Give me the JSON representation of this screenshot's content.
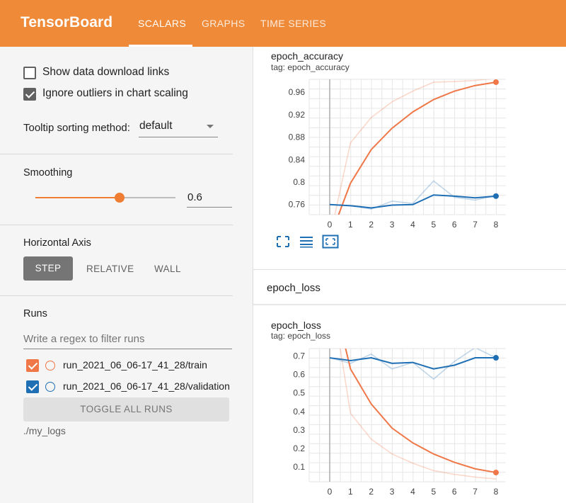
{
  "header": {
    "brand": "TensorBoard",
    "tabs": [
      {
        "label": "SCALARS",
        "active": true
      },
      {
        "label": "GRAPHS",
        "active": false
      },
      {
        "label": "TIME SERIES",
        "active": false
      }
    ],
    "accent": "#ef8a38"
  },
  "sidebar": {
    "options": {
      "show_download_links": {
        "label": "Show data download links",
        "checked": false
      },
      "ignore_outliers": {
        "label": "Ignore outliers in chart scaling",
        "checked": true
      }
    },
    "tooltip_sorting": {
      "label": "Tooltip sorting method:",
      "value": "default"
    },
    "smoothing": {
      "title": "Smoothing",
      "value": "0.6",
      "level": 0.6
    },
    "horizontal_axis": {
      "title": "Horizontal Axis",
      "options": [
        "STEP",
        "RELATIVE",
        "WALL"
      ],
      "selected": "STEP"
    },
    "runs": {
      "title": "Runs",
      "filter_placeholder": "Write a regex to filter runs",
      "items": [
        {
          "name": "run_2021_06_06-17_41_28/train",
          "color": "#ef7748",
          "checked": true
        },
        {
          "name": "run_2021_06_06-17_41_28/validation",
          "color": "#1f6fb5",
          "checked": true
        }
      ],
      "toggle_label": "TOGGLE ALL RUNS",
      "logdir": "./my_logs"
    }
  },
  "chart_data": [
    {
      "type": "line",
      "title": "epoch_accuracy",
      "tag": "tag: epoch_accuracy",
      "x": [
        0,
        1,
        2,
        3,
        4,
        5,
        6,
        7,
        8
      ],
      "xlim": [
        0,
        8
      ],
      "ylim": [
        0.742,
        0.983
      ],
      "yticks": [
        0.76,
        0.8,
        0.84,
        0.88,
        0.92,
        0.96
      ],
      "ytick_labels": [
        "0.76",
        "0.8",
        "0.84",
        "0.88",
        "0.92",
        "0.96"
      ],
      "grid": true,
      "series": [
        {
          "run": "train",
          "color": "#ef7748",
          "raw": [
            0.7,
            0.87,
            0.915,
            0.943,
            0.962,
            0.978,
            0.979,
            0.981,
            0.985
          ],
          "smoothed": [
            0.7,
            0.798,
            0.858,
            0.896,
            0.925,
            0.947,
            0.962,
            0.972,
            0.978
          ]
        },
        {
          "run": "validation",
          "color": "#1f6fb5",
          "raw": [
            0.76,
            0.758,
            0.752,
            0.766,
            0.762,
            0.802,
            0.773,
            0.768,
            0.776
          ],
          "smoothed": [
            0.76,
            0.758,
            0.754,
            0.759,
            0.76,
            0.777,
            0.775,
            0.772,
            0.775
          ]
        }
      ]
    },
    {
      "type": "line",
      "title": "epoch_loss",
      "tag": "tag: epoch_loss",
      "x": [
        0,
        1,
        2,
        3,
        4,
        5,
        6,
        7,
        8
      ],
      "xlim": [
        0,
        8
      ],
      "ylim": [
        0.02,
        0.74
      ],
      "yticks": [
        0.1,
        0.2,
        0.3,
        0.4,
        0.5,
        0.6,
        0.7
      ],
      "ytick_labels": [
        "0.1",
        "0.2",
        "0.3",
        "0.4",
        "0.5",
        "0.6",
        "0.7"
      ],
      "grid": true,
      "series": [
        {
          "run": "train",
          "color": "#ef7748",
          "raw": [
            1.1,
            0.39,
            0.25,
            0.17,
            0.12,
            0.08,
            0.06,
            0.045,
            0.035
          ],
          "smoothed": [
            1.1,
            0.63,
            0.44,
            0.31,
            0.23,
            0.17,
            0.125,
            0.09,
            0.07
          ]
        },
        {
          "run": "validation",
          "color": "#1f6fb5",
          "raw": [
            0.69,
            0.66,
            0.71,
            0.63,
            0.665,
            0.575,
            0.67,
            0.745,
            0.69
          ],
          "smoothed": [
            0.69,
            0.675,
            0.69,
            0.66,
            0.665,
            0.63,
            0.65,
            0.69,
            0.69
          ]
        }
      ]
    }
  ],
  "loss_section": {
    "title": "epoch_loss"
  },
  "chart_tools": [
    "fullscreen-icon",
    "toggle-y-log-icon",
    "fit-domain-icon"
  ]
}
